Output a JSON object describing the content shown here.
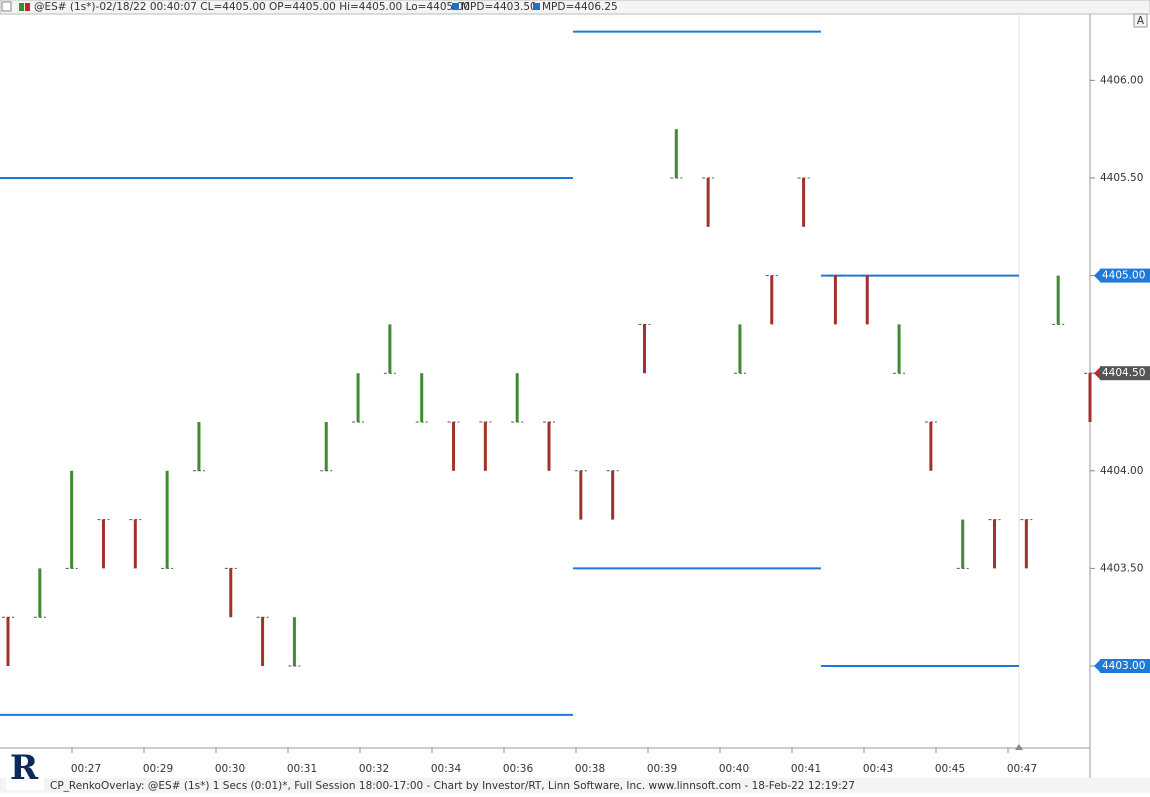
{
  "chart_data": {
    "type": "renko",
    "title": "@ES# (1s*)-02/18/22 00:40:07 CL=4405.00 OP=4405.00 Hi=4405.00 Lo=4405.00",
    "legend": [
      {
        "name": "MPD=4403.50",
        "color": "#1e6fd0"
      },
      {
        "name": "MPD=4406.25",
        "color": "#1e6fd0"
      }
    ],
    "footer": "CP_RenkoOverlay: @ES# (1s*) 1 Secs (0:01)*, Full Session 18:00-17:00 - Chart by Investor/RT, Linn Software, Inc. www.linnsoft.com - 18-Feb-22 12:19:27",
    "button": "A",
    "categories": [
      "00:27",
      "00:29",
      "00:30",
      "00:31",
      "00:32",
      "00:34",
      "00:36",
      "00:38",
      "00:39",
      "00:40",
      "00:41",
      "00:43",
      "00:45",
      "00:47"
    ],
    "up_color": "#3d8c2f",
    "down_color": "#a2312b",
    "level_color": "#1e7ad8",
    "bricks": {
      "open": [
        4403.25,
        4403.25,
        4403.5,
        4403.75,
        4403.75,
        4403.5,
        4404,
        4403.5,
        4403.25,
        4403,
        4404,
        4404.25,
        4404.5,
        4404.25,
        4404.25,
        4404.25,
        4404.25,
        4404.25,
        4404,
        4404,
        4404.75,
        4405.5,
        4405.5,
        4404.5,
        4405,
        4405.5,
        4405,
        4405,
        4404.5,
        4404.25,
        4403.5,
        4403.75,
        4403.75,
        4404.75,
        4404.5
      ],
      "close": [
        4403,
        4403.5,
        4404,
        4403.5,
        4403.5,
        4404,
        4404.25,
        4403.25,
        4403,
        4403.25,
        4404.25,
        4404.5,
        4404.75,
        4404.5,
        4404,
        4404,
        4404.5,
        4404,
        4403.75,
        4403.75,
        4404.5,
        4405.75,
        4405.25,
        4404.75,
        4404.75,
        4405.25,
        4404.75,
        4404.75,
        4404.75,
        4404,
        4403.75,
        4403.5,
        4403.5,
        4405,
        4404.25
      ]
    },
    "mpd_periods": [
      [
        4405.5,
        4402.75
      ],
      [
        4406.25,
        4403.5
      ],
      [
        4405,
        4403
      ]
    ],
    "price_markers": [
      {
        "label": "4405.00",
        "value": 4405,
        "color": "#1e7ad8"
      },
      {
        "label": "4404.50",
        "value": 4404.5,
        "color": "#555555"
      },
      {
        "label": "4403.00",
        "value": 4403,
        "color": "#1e7ad8"
      }
    ],
    "ylim": [
      4402.58,
      4406.34
    ],
    "yticks": [
      {
        "value": 4403,
        "label": "4403.00"
      },
      {
        "value": 4403.5,
        "label": "4403.50"
      },
      {
        "value": 4404,
        "label": "4404.00"
      },
      {
        "value": 4404.5,
        "label": "4404.50"
      },
      {
        "value": 4405,
        "label": "4405.00"
      },
      {
        "value": 4405.5,
        "label": "4405.50"
      },
      {
        "value": 4406,
        "label": "4406.00"
      }
    ]
  }
}
